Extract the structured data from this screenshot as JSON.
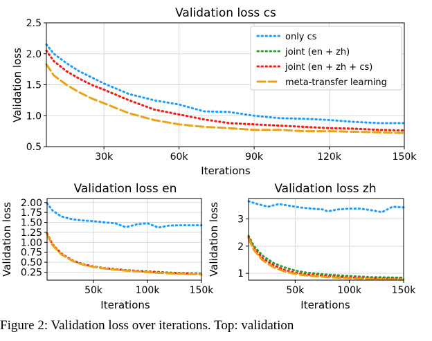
{
  "caption": "Figure 2: Validation loss over iterations. Top: validation",
  "colors": {
    "only_cs": "#1f9cff",
    "joint_en_zh": "#2ca02c",
    "joint_en_zh_cs": "#ff1a1a",
    "meta_transfer": "#e8a317"
  },
  "chart_data": [
    {
      "type": "line",
      "title": "Validation loss cs",
      "xlabel": "Iterations",
      "ylabel": "Validation loss",
      "xlim": [
        7000,
        150000
      ],
      "ylim": [
        0.5,
        2.5
      ],
      "xticks": [
        30000,
        60000,
        90000,
        120000,
        150000
      ],
      "xtick_labels": [
        "30k",
        "60k",
        "90k",
        "120k",
        "150k"
      ],
      "yticks": [
        0.5,
        1.0,
        1.5,
        2.0,
        2.5
      ],
      "ytick_labels": [
        "0.5",
        "1.0",
        "1.5",
        "2.0",
        "2.5"
      ],
      "grid": true,
      "legend": "top-right",
      "series": [
        {
          "name": "only cs",
          "style": "dotted",
          "color_key": "only_cs",
          "x": [
            7000,
            10000,
            15000,
            20000,
            25000,
            30000,
            40000,
            50000,
            60000,
            70000,
            80000,
            90000,
            100000,
            110000,
            120000,
            130000,
            140000,
            150000
          ],
          "y": [
            2.15,
            2.0,
            1.85,
            1.72,
            1.62,
            1.52,
            1.35,
            1.25,
            1.18,
            1.07,
            1.06,
            1.0,
            0.96,
            0.95,
            0.93,
            0.9,
            0.88,
            0.88
          ]
        },
        {
          "name": "joint (en + zh)",
          "style": "dotted",
          "color_key": "joint_en_zh",
          "x": [
            7000,
            10000,
            15000,
            20000,
            25000,
            30000,
            40000,
            50000,
            60000,
            70000,
            80000,
            90000,
            100000,
            110000,
            120000,
            130000,
            140000,
            150000
          ],
          "y": [
            2.05,
            1.88,
            1.72,
            1.6,
            1.5,
            1.42,
            1.25,
            1.1,
            1.02,
            0.94,
            0.88,
            0.86,
            0.84,
            0.82,
            0.8,
            0.79,
            0.77,
            0.76
          ]
        },
        {
          "name": "joint (en + zh + cs)",
          "style": "dotted",
          "color_key": "joint_en_zh_cs",
          "x": [
            7000,
            10000,
            15000,
            20000,
            25000,
            30000,
            40000,
            50000,
            60000,
            70000,
            80000,
            90000,
            100000,
            110000,
            120000,
            130000,
            140000,
            150000
          ],
          "y": [
            2.05,
            1.88,
            1.72,
            1.6,
            1.5,
            1.42,
            1.25,
            1.1,
            1.02,
            0.94,
            0.88,
            0.86,
            0.84,
            0.82,
            0.8,
            0.79,
            0.77,
            0.76
          ]
        },
        {
          "name": "meta-transfer learning",
          "style": "dashed",
          "color_key": "meta_transfer",
          "x": [
            7000,
            10000,
            15000,
            20000,
            25000,
            30000,
            40000,
            50000,
            60000,
            70000,
            80000,
            90000,
            100000,
            110000,
            120000,
            130000,
            140000,
            150000
          ],
          "y": [
            1.83,
            1.65,
            1.5,
            1.38,
            1.28,
            1.2,
            1.04,
            0.93,
            0.86,
            0.82,
            0.8,
            0.77,
            0.77,
            0.75,
            0.75,
            0.74,
            0.73,
            0.72
          ]
        }
      ]
    },
    {
      "type": "line",
      "title": "Validation loss en",
      "xlabel": "Iterations",
      "ylabel": "Validation loss",
      "xlim": [
        7000,
        150000
      ],
      "ylim": [
        0.05,
        2.1
      ],
      "xticks": [
        50000,
        100000,
        150000
      ],
      "xtick_labels": [
        "50k",
        "100k",
        "150k"
      ],
      "yticks": [
        0.25,
        0.5,
        0.75,
        1.0,
        1.25,
        1.5,
        1.75,
        2.0
      ],
      "ytick_labels": [
        "0.25",
        "0.50",
        "0.75",
        "1.00",
        "1.25",
        "1.50",
        "1.75",
        "2.00"
      ],
      "grid": true,
      "series": [
        {
          "name": "only cs",
          "style": "dotted",
          "color_key": "only_cs",
          "x": [
            7000,
            12000,
            20000,
            30000,
            40000,
            50000,
            60000,
            70000,
            80000,
            90000,
            100000,
            110000,
            120000,
            130000,
            140000,
            150000
          ],
          "y": [
            1.98,
            1.8,
            1.65,
            1.58,
            1.55,
            1.53,
            1.5,
            1.48,
            1.38,
            1.45,
            1.48,
            1.37,
            1.42,
            1.43,
            1.43,
            1.43
          ]
        },
        {
          "name": "joint (en + zh)",
          "style": "dotted",
          "color_key": "joint_en_zh",
          "x": [
            7000,
            12000,
            20000,
            30000,
            40000,
            50000,
            60000,
            80000,
            100000,
            120000,
            150000
          ],
          "y": [
            1.22,
            0.95,
            0.72,
            0.55,
            0.45,
            0.39,
            0.35,
            0.3,
            0.27,
            0.24,
            0.21
          ]
        },
        {
          "name": "joint (en + zh + cs)",
          "style": "dotted",
          "color_key": "joint_en_zh_cs",
          "x": [
            7000,
            12000,
            20000,
            30000,
            40000,
            50000,
            60000,
            80000,
            100000,
            120000,
            150000
          ],
          "y": [
            1.22,
            0.95,
            0.72,
            0.55,
            0.45,
            0.39,
            0.35,
            0.3,
            0.26,
            0.23,
            0.2
          ]
        },
        {
          "name": "meta-transfer learning",
          "style": "dashed",
          "color_key": "meta_transfer",
          "x": [
            7000,
            12000,
            20000,
            30000,
            40000,
            50000,
            60000,
            80000,
            100000,
            120000,
            150000
          ],
          "y": [
            1.2,
            0.93,
            0.7,
            0.54,
            0.44,
            0.38,
            0.34,
            0.29,
            0.25,
            0.22,
            0.19
          ]
        }
      ]
    },
    {
      "type": "line",
      "title": "Validation loss zh",
      "xlabel": "Iterations",
      "ylabel": "Validation loss",
      "xlim": [
        7000,
        150000
      ],
      "ylim": [
        0.75,
        3.75
      ],
      "xticks": [
        50000,
        100000,
        150000
      ],
      "xtick_labels": [
        "50k",
        "100k",
        "150k"
      ],
      "yticks": [
        1,
        2,
        3
      ],
      "ytick_labels": [
        "1",
        "2",
        "3"
      ],
      "grid": true,
      "series": [
        {
          "name": "only cs",
          "style": "dotted",
          "color_key": "only_cs",
          "x": [
            7000,
            15000,
            25000,
            35000,
            45000,
            55000,
            65000,
            75000,
            80000,
            90000,
            100000,
            110000,
            120000,
            130000,
            140000,
            150000
          ],
          "y": [
            3.65,
            3.55,
            3.45,
            3.55,
            3.48,
            3.42,
            3.38,
            3.35,
            3.28,
            3.35,
            3.38,
            3.38,
            3.32,
            3.25,
            3.45,
            3.42
          ]
        },
        {
          "name": "joint (en + zh)",
          "style": "dotted",
          "color_key": "joint_en_zh",
          "x": [
            7000,
            12000,
            20000,
            30000,
            40000,
            50000,
            60000,
            80000,
            100000,
            120000,
            150000
          ],
          "y": [
            2.38,
            2.0,
            1.65,
            1.38,
            1.22,
            1.1,
            1.03,
            0.95,
            0.9,
            0.86,
            0.84
          ]
        },
        {
          "name": "joint (en + zh + cs)",
          "style": "dotted",
          "color_key": "joint_en_zh_cs",
          "x": [
            7000,
            12000,
            20000,
            30000,
            40000,
            50000,
            60000,
            80000,
            100000,
            120000,
            150000
          ],
          "y": [
            2.33,
            1.92,
            1.55,
            1.3,
            1.13,
            1.02,
            0.96,
            0.9,
            0.85,
            0.82,
            0.8
          ]
        },
        {
          "name": "meta-transfer learning",
          "style": "dashed",
          "color_key": "meta_transfer",
          "x": [
            7000,
            12000,
            20000,
            30000,
            40000,
            50000,
            60000,
            80000,
            100000,
            120000,
            150000
          ],
          "y": [
            2.28,
            1.85,
            1.48,
            1.22,
            1.07,
            0.98,
            0.92,
            0.86,
            0.82,
            0.79,
            0.77
          ]
        }
      ]
    }
  ]
}
